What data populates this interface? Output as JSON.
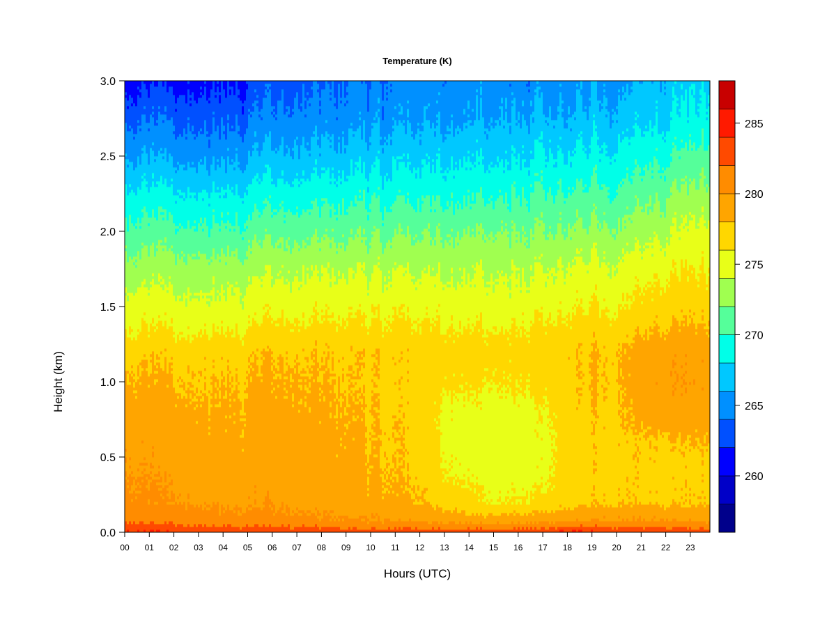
{
  "chart_data": {
    "type": "heatmap",
    "title": "Temperature (K)",
    "xlabel": "Hours (UTC)",
    "ylabel": "Height (km)",
    "x_ticks": [
      "00",
      "01",
      "02",
      "03",
      "04",
      "05",
      "06",
      "07",
      "08",
      "09",
      "10",
      "11",
      "12",
      "13",
      "14",
      "15",
      "16",
      "17",
      "18",
      "19",
      "20",
      "21",
      "22",
      "23"
    ],
    "xlim": [
      0,
      23.85
    ],
    "y_ticks": [
      "0.0",
      "0.5",
      "1.0",
      "1.5",
      "2.0",
      "2.5",
      "3.0"
    ],
    "ylim": [
      0,
      3.0
    ],
    "colorbar": {
      "ticks": [
        "260",
        "265",
        "270",
        "275",
        "280",
        "285"
      ],
      "range": [
        256,
        288
      ],
      "levels": [
        256,
        258,
        260,
        262,
        264,
        266,
        268,
        270,
        272,
        274,
        276,
        278,
        280,
        282,
        284,
        286,
        288
      ],
      "colors": [
        "#00008B",
        "#0000C8",
        "#0000FF",
        "#0050FF",
        "#0090FF",
        "#00C8FF",
        "#00FFE8",
        "#55FF9A",
        "#A0FF50",
        "#E8FF18",
        "#FFD700",
        "#FFA500",
        "#FF8C00",
        "#FF4A00",
        "#FF1A00",
        "#C80000",
        "#8B0000"
      ]
    },
    "profile_heights_km": [
      0.0,
      0.03,
      0.08,
      0.2,
      0.4,
      0.6,
      0.8,
      1.0,
      1.2,
      1.3,
      1.5,
      1.75,
      2.0,
      2.25,
      2.5,
      2.75,
      3.0
    ],
    "profiles_by_hour": [
      {
        "hour": 0,
        "temps": [
          284.5,
          283,
          281.5,
          280.5,
          280,
          279.6,
          279.2,
          278.2,
          277.5,
          276.2,
          274.8,
          272.8,
          270.6,
          268.4,
          265.8,
          263.4,
          261.0
        ]
      },
      {
        "hour": 3,
        "temps": [
          283.8,
          282.5,
          281,
          279.8,
          279.1,
          278.8,
          278.5,
          278.0,
          277.4,
          276.3,
          274.8,
          273.0,
          270.6,
          268.3,
          265.6,
          263.6,
          261.6
        ]
      },
      {
        "hour": 6,
        "temps": [
          283.8,
          282.3,
          280.6,
          279.6,
          279.1,
          278.7,
          278.5,
          278.1,
          277.6,
          276.6,
          275.0,
          273.3,
          270.9,
          268.6,
          266.0,
          264.0,
          262.5
        ]
      },
      {
        "hour": 9,
        "temps": [
          283.4,
          281.8,
          280.1,
          278.8,
          278.5,
          278.3,
          278.0,
          277.7,
          277.5,
          276.6,
          275.2,
          273.5,
          271.1,
          268.8,
          266.5,
          264.6,
          263.5
        ]
      },
      {
        "hour": 12,
        "temps": [
          283.4,
          281.6,
          279.6,
          278.0,
          277.5,
          277.3,
          277.1,
          277.0,
          277.2,
          276.5,
          275.2,
          273.5,
          271.5,
          269.2,
          267.2,
          265.2,
          264.5
        ]
      },
      {
        "hour": 13,
        "temps": [
          283.4,
          281.5,
          279.2,
          277.2,
          276.2,
          275.6,
          275.6,
          276.6,
          277.0,
          276.5,
          275.2,
          273.6,
          271.8,
          269.5,
          267.6,
          265.5,
          264.7
        ]
      },
      {
        "hour": 15,
        "temps": [
          283.5,
          281.4,
          279.0,
          276.0,
          275.1,
          275.0,
          275.3,
          276.3,
          277.0,
          276.5,
          275.2,
          274.0,
          272.2,
          270.0,
          268.0,
          266.2,
          265.2
        ]
      },
      {
        "hour": 17,
        "temps": [
          284.0,
          282.0,
          279.2,
          276.4,
          275.5,
          275.4,
          275.7,
          276.7,
          277.2,
          276.7,
          275.4,
          274.0,
          272.1,
          270.3,
          268.3,
          266.5,
          265.0
        ]
      },
      {
        "hour": 18,
        "temps": [
          284.5,
          282.5,
          279.8,
          277.2,
          276.8,
          276.9,
          277.3,
          277.5,
          277.6,
          276.9,
          275.6,
          274.2,
          272.2,
          270.1,
          268.1,
          266.1,
          264.8
        ]
      },
      {
        "hour": 20,
        "temps": [
          284.0,
          282.3,
          280.1,
          277.8,
          277.6,
          277.6,
          277.8,
          278.0,
          278.0,
          277.4,
          276.0,
          274.5,
          272.5,
          270.5,
          268.6,
          266.8,
          265.5
        ]
      },
      {
        "hour": 22,
        "temps": [
          283.6,
          282.0,
          280.0,
          277.5,
          277.2,
          277.6,
          279.0,
          279.5,
          279.3,
          278.4,
          276.9,
          275.3,
          273.4,
          271.4,
          269.3,
          267.4,
          266.2
        ]
      },
      {
        "hour": 23.85,
        "temps": [
          283.0,
          281.5,
          279.6,
          277.8,
          277.5,
          278.0,
          279.1,
          279.4,
          279.0,
          278.3,
          277.2,
          276.0,
          274.6,
          272.8,
          270.8,
          268.8,
          267.6
        ]
      }
    ]
  }
}
